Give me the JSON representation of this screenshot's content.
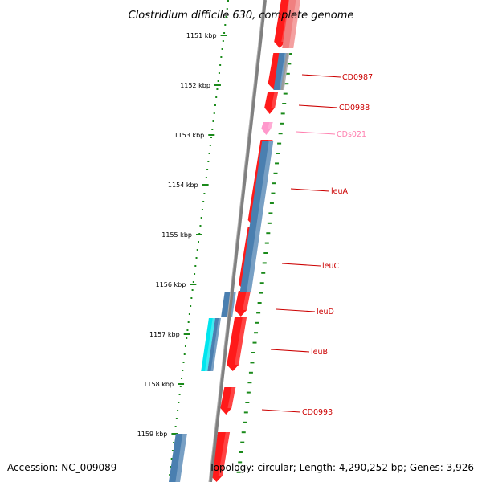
{
  "title": "Clostridium difficile 630, complete genome",
  "footer": {
    "accession": "Accession: NC_009089",
    "topology": "Topology: circular; Length: 4,290,252 bp; Genes: 3,926"
  },
  "colors": {
    "gene_forward": "#ff1a1a",
    "gene_forward_light": "#f08080",
    "gene_reverse": "#4a7fb0",
    "gene_pseudo": "#ff99cc",
    "rna": "#00e5ee",
    "scale": "#1a8a1a",
    "backbone": "#808080",
    "label": "#cc0000",
    "label_pseudo": "#ff80b0"
  },
  "scale_ticks": [
    {
      "label": "1151 kbp"
    },
    {
      "label": "1152 kbp"
    },
    {
      "label": "1153 kbp"
    },
    {
      "label": "1154 kbp"
    },
    {
      "label": "1155 kbp"
    },
    {
      "label": "1156 kbp"
    },
    {
      "label": "1157 kbp"
    },
    {
      "label": "1158 kbp"
    },
    {
      "label": "1159 kbp"
    }
  ],
  "gene_labels": [
    {
      "name": "CD0987",
      "kind": "gene"
    },
    {
      "name": "CD0988",
      "kind": "gene"
    },
    {
      "name": "CDs021",
      "kind": "pseudo"
    },
    {
      "name": "leuA",
      "kind": "gene"
    },
    {
      "name": "leuC",
      "kind": "gene"
    },
    {
      "name": "leuD",
      "kind": "gene"
    },
    {
      "name": "leuB",
      "kind": "gene"
    },
    {
      "name": "CD0993",
      "kind": "gene"
    }
  ]
}
